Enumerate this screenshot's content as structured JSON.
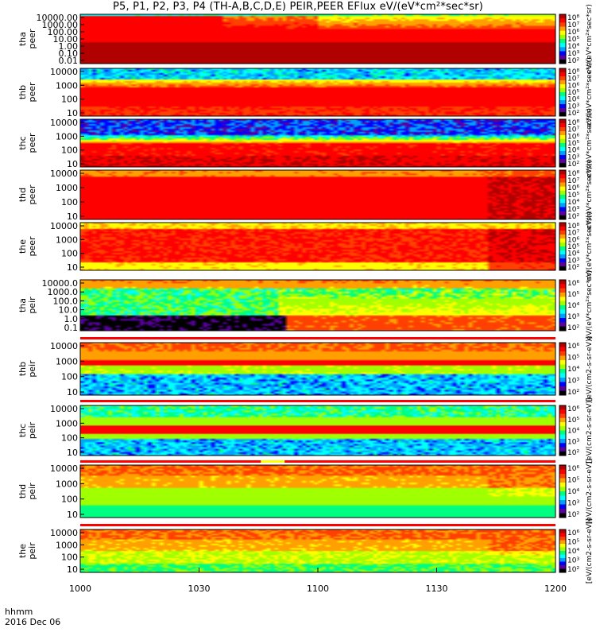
{
  "chart_data": {
    "type": "heatmap",
    "title": "P5, P1, P2, P3, P4 (TH-A,B,C,D,E) PEIR,PEER EFlux eV/(eV*cm²*sec*sr)",
    "xlabel": "hhmm",
    "date_label": "2016 Dec 06",
    "x_ticks": [
      "1000",
      "1030",
      "1100",
      "1130",
      "1200"
    ],
    "x_range": [
      "10:00",
      "12:00"
    ],
    "colorbar_label": "eV/(eV*cm²*sec*sr)",
    "colorbar_label_ions": "[eV/(cm2-s-sr-eV)]",
    "panels": [
      {
        "probe": "tha",
        "species": "peer",
        "y_ticks": [
          "10000.00",
          "1000.00",
          "100.00",
          "10.00",
          "1.00",
          "0.10",
          "0.01"
        ],
        "cbar_ticks": [
          "10⁸",
          "10⁷",
          "10⁶",
          "10⁵",
          "10⁴",
          "10³",
          "10²"
        ],
        "profile": "tha_peer",
        "colorbar_label": "eV/(eV*cm²*sec*sr)"
      },
      {
        "probe": "thb",
        "species": "peer",
        "y_ticks": [
          "10000",
          "1000",
          "100",
          "10"
        ],
        "cbar_ticks": [
          "10⁸",
          "10⁷",
          "10⁶",
          "10⁵",
          "10⁴",
          "10³",
          "10²"
        ],
        "profile": "thb_peer",
        "colorbar_label": "eV/(eV*cm²*sec*sr)"
      },
      {
        "probe": "thc",
        "species": "peer",
        "y_ticks": [
          "10000",
          "1000",
          "100",
          "10"
        ],
        "cbar_ticks": [
          "10⁸",
          "10⁷",
          "10⁶",
          "10⁵",
          "10⁴",
          "10³",
          "10²"
        ],
        "profile": "thc_peer",
        "colorbar_label": "eV/(eV*cm²*sec*sr)"
      },
      {
        "probe": "thd",
        "species": "peer",
        "y_ticks": [
          "10000",
          "1000",
          "100",
          "10"
        ],
        "cbar_ticks": [
          "10⁸",
          "10⁷",
          "10⁶",
          "10⁵",
          "10⁴",
          "10³",
          "10²"
        ],
        "profile": "thd_peer",
        "colorbar_label": "eV/(eV*cm²*sec*sr)"
      },
      {
        "probe": "the",
        "species": "peer",
        "y_ticks": [
          "10000",
          "1000",
          "100",
          "10"
        ],
        "cbar_ticks": [
          "10⁸",
          "10⁷",
          "10⁶",
          "10⁵",
          "10⁴",
          "10³",
          "10²"
        ],
        "profile": "the_peer",
        "colorbar_label": "eV/(eV*cm²*sec*sr)"
      },
      {
        "probe": "tha",
        "species": "peir",
        "y_ticks": [
          "10000.0",
          "1000.0",
          "100.0",
          "10.0",
          "1.0",
          "0.1"
        ],
        "cbar_ticks": [
          "10⁶",
          "10⁵",
          "10⁴",
          "10³",
          "10²"
        ],
        "profile": "tha_peir",
        "colorbar_label": "eV/(eV*cm²*sec*sr)"
      },
      {
        "probe": "thb",
        "species": "peir",
        "y_ticks": [
          "10000",
          "1000",
          "100",
          "10"
        ],
        "cbar_ticks": [
          "10⁶",
          "10⁵",
          "10⁴",
          "10³",
          "10²"
        ],
        "profile": "thb_peir",
        "colorbar_label": "[eV/(cm2-s-sr-eV)]"
      },
      {
        "probe": "thc",
        "species": "peir",
        "y_ticks": [
          "10000",
          "1000",
          "100",
          "10"
        ],
        "cbar_ticks": [
          "10⁶",
          "10⁵",
          "10⁴",
          "10³",
          "10²"
        ],
        "profile": "thc_peir",
        "colorbar_label": "[eV/(cm2-s-sr-eV)]"
      },
      {
        "probe": "thd",
        "species": "peir",
        "y_ticks": [
          "10000",
          "1000",
          "100",
          "10"
        ],
        "cbar_ticks": [
          "10⁶",
          "10⁵",
          "10⁴",
          "10³",
          "10²"
        ],
        "profile": "thd_peir",
        "colorbar_label": "[eV/(cm2-s-sr-eV)]"
      },
      {
        "probe": "the",
        "species": "peir",
        "y_ticks": [
          "10000",
          "1000",
          "100",
          "10"
        ],
        "cbar_ticks": [
          "10⁶",
          "10⁵",
          "10⁴",
          "10³",
          "10²"
        ],
        "profile": "the_peir",
        "colorbar_label": "[eV/(cm2-s-sr-eV)]"
      }
    ],
    "colors": {
      "colormap": [
        "#000000",
        "#5a00a0",
        "#0000ff",
        "#00a0ff",
        "#00ffff",
        "#00ff80",
        "#a0ff00",
        "#ffff00",
        "#ffa000",
        "#ff4000",
        "#ff0000",
        "#b00000"
      ],
      "flag_red": "#ff0000",
      "flag_yellow": "#ffff00"
    }
  }
}
